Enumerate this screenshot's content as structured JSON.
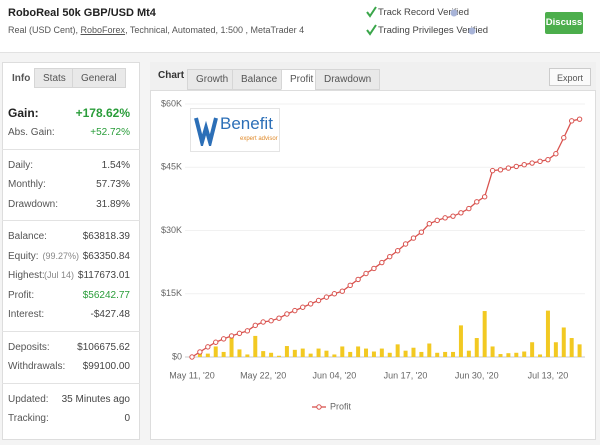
{
  "header": {
    "title": "RoboReal 50k GBP/USD Mt4",
    "subtitle": [
      "Real (USD Cent), ",
      "RoboForex",
      ", Technical, Automated, 1:500 , MetaTrader 4"
    ],
    "verified": [
      "Track Record Verified",
      "Trading Privileges Verified"
    ],
    "button": "Discuss"
  },
  "info": {
    "tabs": [
      "Info",
      "Stats",
      "General"
    ],
    "active": 0,
    "groups": [
      [
        {
          "label": "Gain:",
          "value": "+178.62%",
          "color": "#2a9d3a",
          "emphasis": true
        },
        {
          "label": "Abs. Gain:",
          "value": "+52.72%",
          "color": "#2a9d3a"
        }
      ],
      [
        {
          "label": "Daily:",
          "value": "1.54%"
        },
        {
          "label": "Monthly:",
          "value": "57.73%"
        },
        {
          "label": "Drawdown:",
          "value": "31.89%"
        }
      ],
      [
        {
          "label": "Balance:",
          "value": "$63818.39"
        },
        {
          "label": "Equity:",
          "note": "(99.27%)",
          "value": "$63350.84"
        },
        {
          "label": "Highest:",
          "note": "(Jul 14)",
          "value": "$117673.01"
        },
        {
          "label": "Profit:",
          "value": "$56242.77",
          "color": "#2a9d3a"
        },
        {
          "label": "Interest:",
          "value": "-$427.48"
        }
      ],
      [
        {
          "label": "Deposits:",
          "value": "$106675.62"
        },
        {
          "label": "Withdrawals:",
          "value": "$99100.00"
        }
      ],
      [
        {
          "label": "Updated:",
          "value": "35 Minutes ago"
        },
        {
          "label": "Tracking:",
          "value": "0"
        }
      ]
    ]
  },
  "chart_panel": {
    "label": "Chart",
    "tabs": [
      "Growth",
      "Balance",
      "Profit",
      "Drawdown"
    ],
    "active": 2,
    "export": "Export"
  },
  "logo": {
    "name": "Benefit",
    "tagline": "expert advisor"
  },
  "chart_data": {
    "type": "combo",
    "categories": [
      "May 11, '20",
      null,
      null,
      null,
      null,
      null,
      null,
      null,
      null,
      "May 22, '20",
      null,
      null,
      null,
      null,
      null,
      null,
      null,
      null,
      "Jun 04, '20",
      null,
      null,
      null,
      null,
      null,
      null,
      null,
      null,
      "Jun 17, '20",
      null,
      null,
      null,
      null,
      null,
      null,
      null,
      null,
      "Jun 30, '20",
      null,
      null,
      null,
      null,
      null,
      null,
      null,
      null,
      "Jul 13, '20",
      null,
      null,
      null,
      null
    ],
    "series": [
      {
        "type": "bar",
        "color": "#f2c922",
        "values": [
          0,
          1500,
          800,
          2500,
          1200,
          4600,
          1800,
          600,
          5000,
          1400,
          1000,
          300,
          2600,
          1700,
          2000,
          800,
          2000,
          1500,
          600,
          2500,
          1200,
          2500,
          2000,
          1300,
          2000,
          1000,
          3000,
          1500,
          2200,
          1200,
          3200,
          1000,
          1200,
          1200,
          7500,
          1500,
          4500,
          10900,
          2500,
          700,
          900,
          1000,
          1300,
          3500,
          600,
          11000,
          3500,
          7000,
          4500,
          3000
        ]
      },
      {
        "name": "Profit",
        "type": "line",
        "color": "#d9534f",
        "values": [
          0,
          1200,
          2400,
          3500,
          4300,
          5000,
          5600,
          6200,
          7500,
          8300,
          8600,
          9200,
          10200,
          11000,
          11800,
          12600,
          13400,
          14200,
          15000,
          15600,
          17000,
          18400,
          19800,
          21000,
          22400,
          23800,
          25200,
          26800,
          28200,
          29600,
          31600,
          32400,
          33000,
          33400,
          34200,
          35200,
          36800,
          38000,
          44200,
          44400,
          44800,
          45200,
          45600,
          46000,
          46400,
          46800,
          48200,
          52000,
          56000,
          56400
        ]
      }
    ],
    "ylim": [
      0,
      60000
    ],
    "yticks": [
      {
        "value": 0,
        "label": "$0"
      },
      {
        "value": 15000,
        "label": "$15K"
      },
      {
        "value": 30000,
        "label": "$30K"
      },
      {
        "value": 45000,
        "label": "$45K"
      },
      {
        "value": 60000,
        "label": "$60K"
      }
    ],
    "grid": true
  }
}
